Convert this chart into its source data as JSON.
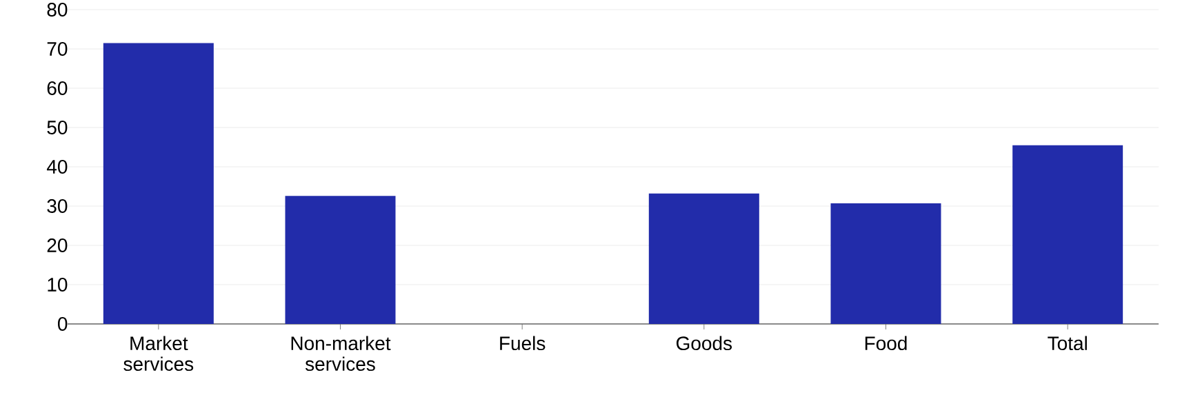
{
  "chart_data": {
    "type": "bar",
    "categories": [
      "Market services",
      "Non-market services",
      "Fuels",
      "Goods",
      "Food",
      "Total"
    ],
    "values": [
      71.5,
      32.6,
      0,
      33.2,
      30.7,
      45.5
    ],
    "color": "#222caa",
    "ylim": [
      0,
      80
    ],
    "yticks": [
      0,
      10,
      20,
      30,
      40,
      50,
      60,
      70,
      80
    ],
    "grid": "y"
  }
}
